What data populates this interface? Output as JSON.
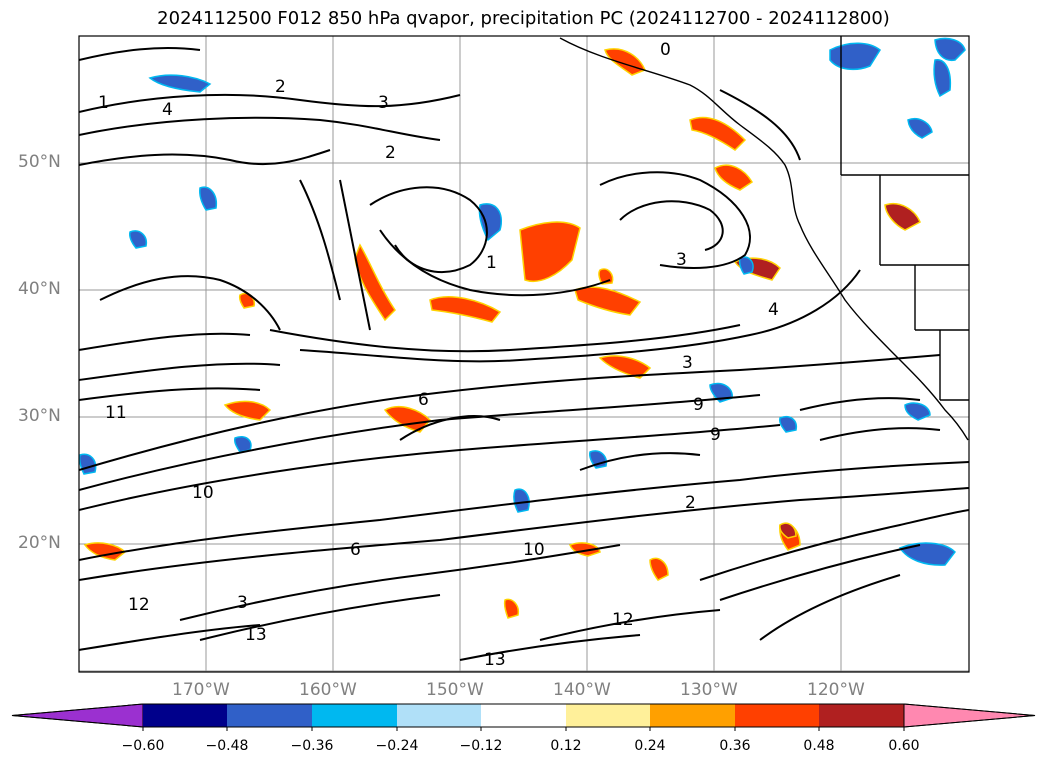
{
  "title": "2024112500 F012 850 hPa qvapor, precipitation PC (2024112700 - 2024112800)",
  "map": {
    "lat_labels": [
      "50°N",
      "40°N",
      "30°N",
      "20°N"
    ],
    "lon_labels": [
      "170°W",
      "160°W",
      "150°W",
      "140°W",
      "130°W",
      "120°W"
    ],
    "contour_labels": [
      "1",
      "2",
      "3",
      "4",
      "6",
      "9",
      "10",
      "11",
      "12",
      "13",
      "0",
      "3",
      "2",
      "4",
      "3",
      "6",
      "9",
      "10",
      "12",
      "13",
      "1",
      "2",
      "3"
    ],
    "contour_color": "#000000",
    "grid_color": "#888888"
  },
  "colorbar": {
    "tick_labels": [
      "−0.60",
      "−0.48",
      "−0.36",
      "−0.24",
      "−0.12",
      "0.12",
      "0.24",
      "0.36",
      "0.48",
      "0.60"
    ],
    "colors": [
      "#9b30d0",
      "#00008b",
      "#3060c8",
      "#00b8f0",
      "#b0e0f8",
      "#ffffff",
      "#fff09a",
      "#ffa000",
      "#ff4000",
      "#b02020",
      "#ff88b0"
    ]
  }
}
